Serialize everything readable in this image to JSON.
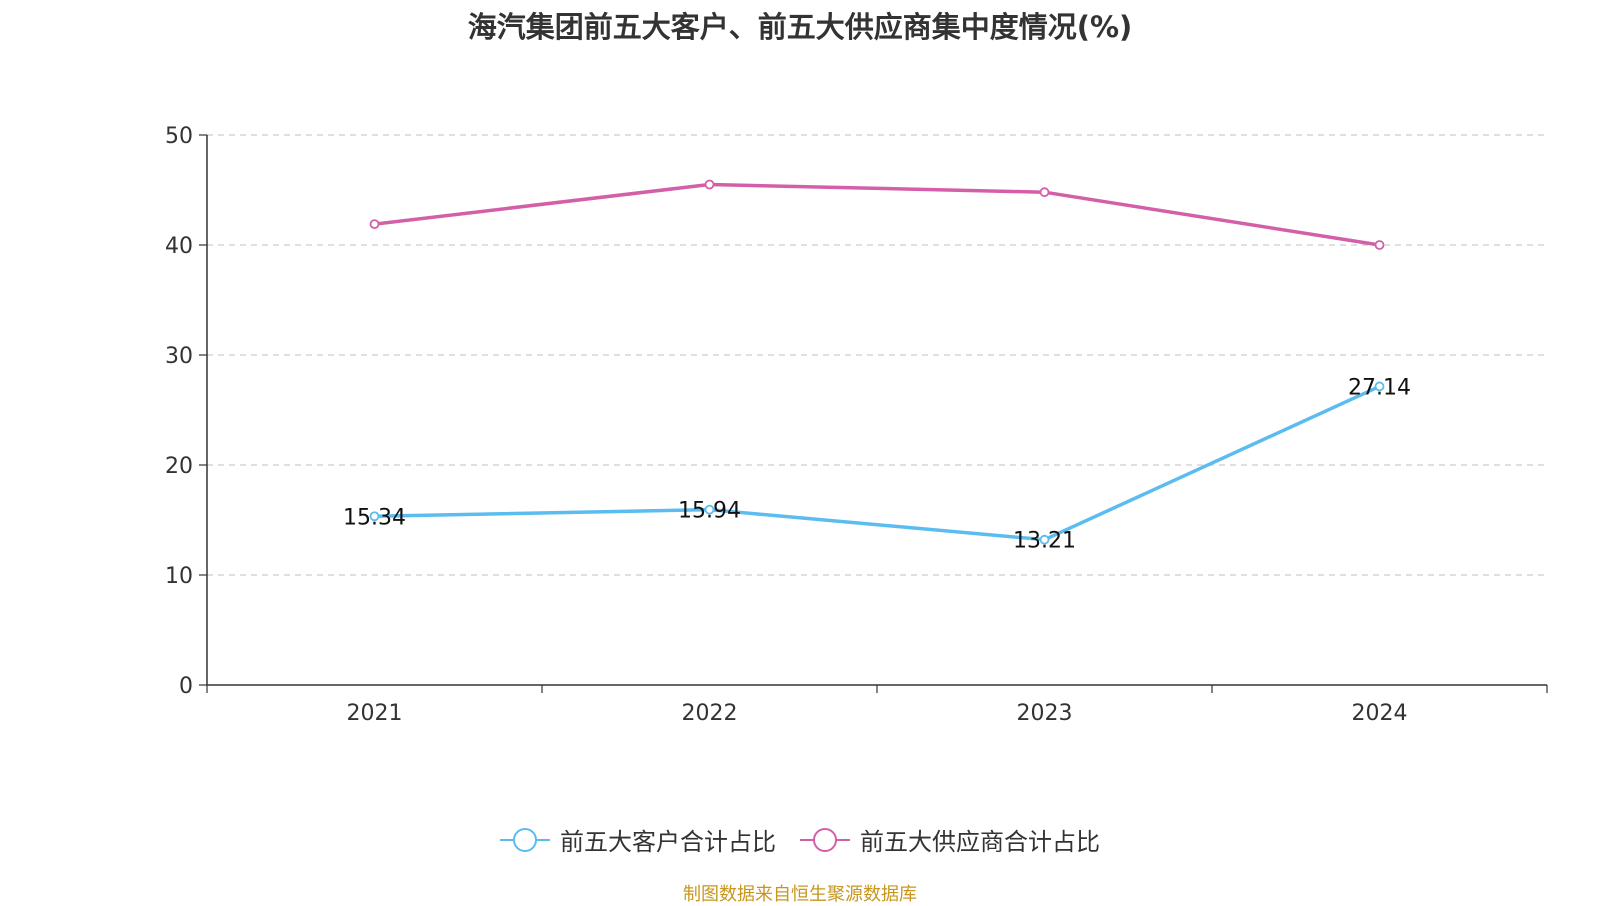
{
  "chart_data": {
    "type": "line",
    "title": "海汽集团前五大客户、前五大供应商集中度情况(%)",
    "categories": [
      "2021",
      "2022",
      "2023",
      "2024"
    ],
    "ylim": [
      0,
      50
    ],
    "yticks": [
      0,
      10,
      20,
      30,
      40,
      50
    ],
    "grid": true,
    "legend_position": "bottom-center",
    "series": [
      {
        "name": "前五大客户合计占比",
        "values": [
          15.34,
          15.94,
          13.21,
          27.14
        ],
        "labels": [
          "15.34",
          "15.94",
          "13.21",
          "27.14"
        ],
        "color": "#5bbcf0"
      },
      {
        "name": "前五大供应商合计占比",
        "values": [
          41.9,
          45.5,
          44.8,
          40.0
        ],
        "color": "#d35fa8"
      }
    ]
  },
  "footer": {
    "source": "制图数据来自恒生聚源数据库"
  }
}
